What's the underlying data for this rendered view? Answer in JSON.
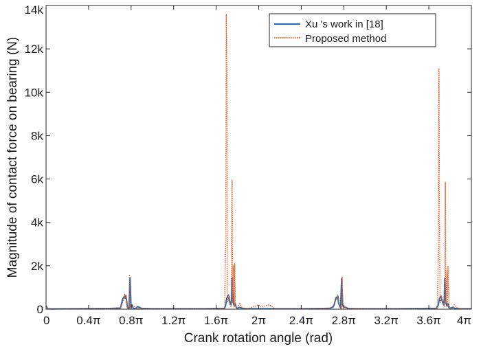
{
  "chart_data": {
    "type": "line",
    "xlabel": "Crank rotation angle (rad)",
    "ylabel": "Magnitude of contact force on bearing (N)",
    "x_unit": "π rad",
    "xlim": [
      0,
      4
    ],
    "ylim": [
      0,
      14000
    ],
    "x_ticks": [
      0,
      0.4,
      0.8,
      1.2,
      1.6,
      2,
      2.4,
      2.8,
      3.2,
      3.6,
      4
    ],
    "x_tick_labels": [
      "0",
      "0.4π",
      "0.8π",
      "1.2π",
      "1.6π",
      "2π",
      "2.4π",
      "2.8π",
      "3.2π",
      "3.6π",
      "4π"
    ],
    "y_ticks": [
      0,
      2000,
      4000,
      6000,
      8000,
      10000,
      12000,
      14000
    ],
    "y_tick_labels": [
      "0",
      "2k",
      "4k",
      "6k",
      "8k",
      "10k",
      "12k",
      "14k"
    ],
    "grid": false,
    "legend_position": "top-right",
    "series": [
      {
        "name": "Xu 's work in [18]",
        "color": "#1f6fb8",
        "style": "solid",
        "x": [
          0,
          0.01,
          0.02,
          0.05,
          0.3,
          0.6,
          0.7,
          0.71,
          0.72,
          0.73,
          0.74,
          0.745,
          0.75,
          0.76,
          0.765,
          0.77,
          0.78,
          0.79,
          0.8,
          0.81,
          0.82,
          0.83,
          0.84,
          0.86,
          0.9,
          1.0,
          1.2,
          1.5,
          1.65,
          1.68,
          1.69,
          1.7,
          1.71,
          1.715,
          1.72,
          1.73,
          1.74,
          1.745,
          1.75,
          1.76,
          1.77,
          1.78,
          1.79,
          1.8,
          1.82,
          1.85,
          1.9,
          2.1,
          2.4,
          2.6,
          2.67,
          2.7,
          2.71,
          2.72,
          2.73,
          2.74,
          2.745,
          2.75,
          2.76,
          2.77,
          2.78,
          2.79,
          2.8,
          2.82,
          2.84,
          2.9,
          3.0,
          3.3,
          3.6,
          3.67,
          3.69,
          3.7,
          3.71,
          3.715,
          3.72,
          3.73,
          3.74,
          3.745,
          3.75,
          3.76,
          3.77,
          3.78,
          3.79,
          3.8,
          3.82,
          3.85,
          3.9,
          4.0
        ],
        "y": [
          150,
          60,
          20,
          10,
          20,
          30,
          50,
          250,
          450,
          550,
          600,
          500,
          650,
          300,
          100,
          40,
          30,
          1450,
          50,
          200,
          40,
          30,
          20,
          120,
          30,
          20,
          20,
          20,
          30,
          40,
          200,
          500,
          600,
          650,
          550,
          300,
          200,
          450,
          1400,
          300,
          150,
          250,
          60,
          40,
          80,
          30,
          20,
          20,
          20,
          30,
          40,
          100,
          200,
          400,
          550,
          500,
          600,
          300,
          150,
          60,
          1400,
          200,
          100,
          80,
          30,
          20,
          20,
          20,
          30,
          40,
          200,
          500,
          550,
          600,
          450,
          300,
          200,
          500,
          1400,
          300,
          150,
          250,
          60,
          40,
          80,
          30,
          20,
          20
        ]
      },
      {
        "name": "Proposed method",
        "color": "#e8581c",
        "style": "dotted",
        "x": [
          0,
          0.01,
          0.02,
          0.05,
          0.3,
          0.6,
          0.7,
          0.72,
          0.73,
          0.74,
          0.745,
          0.75,
          0.76,
          0.77,
          0.78,
          0.785,
          0.79,
          0.795,
          0.8,
          0.82,
          0.86,
          0.9,
          1.0,
          1.2,
          1.5,
          1.65,
          1.68,
          1.69,
          1.695,
          1.7,
          1.705,
          1.71,
          1.715,
          1.72,
          1.73,
          1.74,
          1.75,
          1.755,
          1.76,
          1.77,
          1.775,
          1.78,
          1.79,
          1.8,
          1.82,
          1.84,
          1.86,
          1.88,
          1.9,
          2.0,
          2.02,
          2.1,
          2.15,
          2.2,
          2.4,
          2.6,
          2.67,
          2.7,
          2.72,
          2.73,
          2.74,
          2.745,
          2.75,
          2.76,
          2.77,
          2.78,
          2.785,
          2.79,
          2.8,
          2.82,
          2.86,
          2.9,
          3.0,
          3.3,
          3.6,
          3.66,
          3.68,
          3.69,
          3.695,
          3.7,
          3.705,
          3.71,
          3.72,
          3.73,
          3.74,
          3.75,
          3.755,
          3.76,
          3.77,
          3.775,
          3.78,
          3.79,
          3.8,
          3.82,
          3.84,
          3.86,
          3.88,
          3.9,
          3.95,
          4.0
        ],
        "y": [
          100,
          40,
          20,
          10,
          20,
          30,
          60,
          300,
          500,
          700,
          500,
          650,
          200,
          50,
          30,
          1550,
          100,
          200,
          50,
          150,
          40,
          30,
          20,
          20,
          20,
          30,
          50,
          3400,
          13600,
          11300,
          500,
          300,
          600,
          400,
          200,
          100,
          5950,
          300,
          2000,
          100,
          2100,
          200,
          50,
          30,
          300,
          80,
          50,
          30,
          20,
          200,
          100,
          200,
          30,
          20,
          20,
          30,
          50,
          150,
          400,
          450,
          650,
          500,
          500,
          200,
          50,
          30,
          1500,
          100,
          150,
          50,
          30,
          30,
          20,
          20,
          20,
          30,
          50,
          2800,
          11100,
          4200,
          500,
          300,
          600,
          400,
          200,
          100,
          5850,
          300,
          1800,
          100,
          2000,
          200,
          50,
          30,
          200,
          80,
          40,
          30,
          20,
          20
        ]
      }
    ]
  }
}
